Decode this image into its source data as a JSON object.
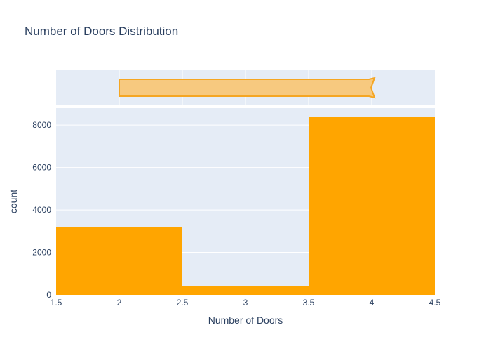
{
  "chart_data": {
    "type": "bar",
    "title": "Number of Doors Distribution",
    "xlabel": "Number of Doors",
    "ylabel": "count",
    "xlim": [
      1.5,
      4.5
    ],
    "ylim": [
      0,
      8800
    ],
    "x_ticks": [
      "1.5",
      "2",
      "2.5",
      "3",
      "3.5",
      "4",
      "4.5"
    ],
    "x_tick_values": [
      1.5,
      2,
      2.5,
      3,
      3.5,
      4,
      4.5
    ],
    "y_ticks": [
      "0",
      "2000",
      "4000",
      "6000",
      "8000"
    ],
    "y_tick_values": [
      0,
      2000,
      4000,
      6000,
      8000
    ],
    "bins": [
      {
        "x0": 1.5,
        "x1": 2.5,
        "value": 3180
      },
      {
        "x0": 2.5,
        "x1": 3.5,
        "value": 400
      },
      {
        "x0": 3.5,
        "x1": 4.5,
        "value": 8400
      }
    ],
    "marginal_box": {
      "min": 2,
      "q1": 2,
      "median": 4,
      "q3": 4,
      "max": 4
    },
    "colors": {
      "bar": "#ffa500",
      "box_fill": "#f7c97f",
      "box_line": "#f5a623",
      "plot_bg": "#e5ecf6",
      "grid": "#ffffff"
    },
    "grid": true,
    "legend": "none"
  }
}
